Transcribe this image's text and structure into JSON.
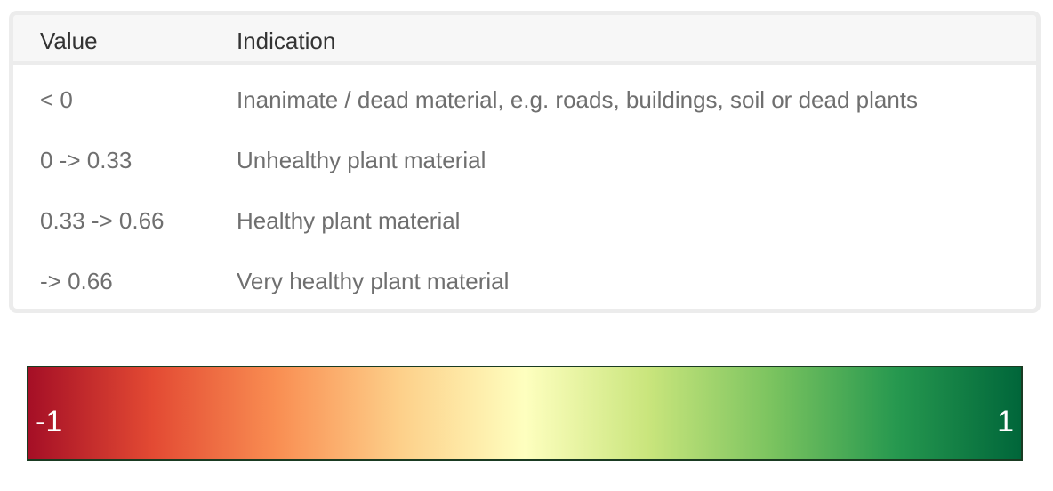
{
  "table": {
    "headers": {
      "value": "Value",
      "indication": "Indication"
    },
    "rows": [
      {
        "value": "< 0",
        "indication": "Inanimate / dead material, e.g. roads, buildings, soil or dead plants"
      },
      {
        "value": "0 -> 0.33",
        "indication": "Unhealthy plant material"
      },
      {
        "value": "0.33 -> 0.66",
        "indication": "Healthy plant material"
      },
      {
        "value": "-> 0.66",
        "indication": "Very healthy plant material"
      }
    ]
  },
  "legend": {
    "min_label": "-1",
    "max_label": "1",
    "colors": [
      "#a50f26",
      "#e34a33",
      "#f98e52",
      "#fdd08a",
      "#feffbf",
      "#c9e57c",
      "#7ac35f",
      "#26984f",
      "#00663a"
    ]
  }
}
